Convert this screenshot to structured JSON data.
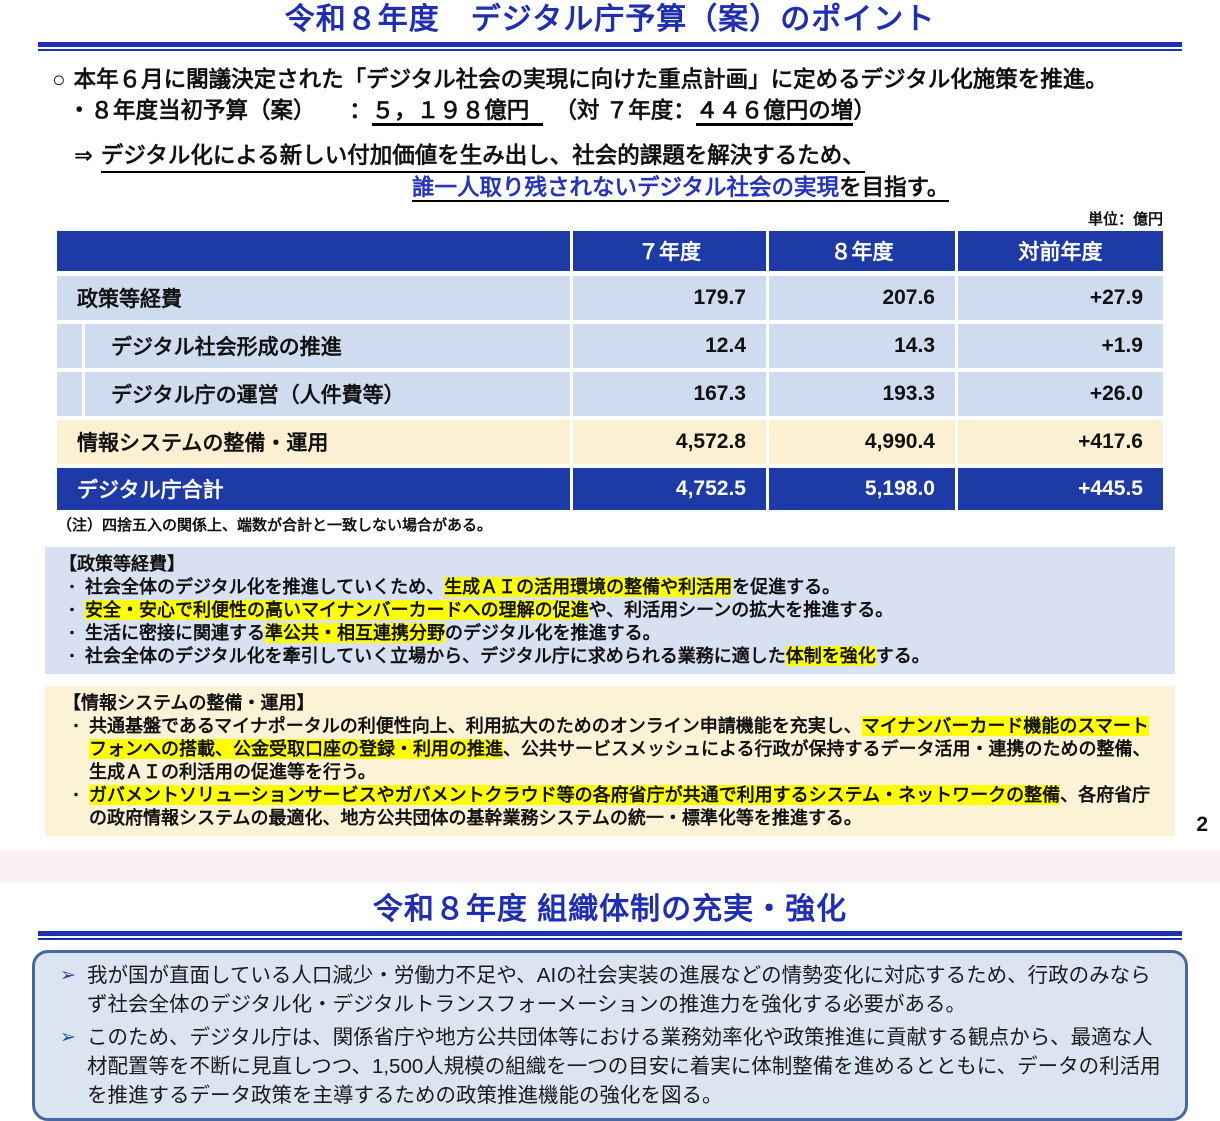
{
  "page": {
    "title": "令和８年度　デジタル庁予算（案）のポイント",
    "page_number": "2"
  },
  "intro": {
    "marker_circle": "○",
    "line1": "本年６月に閣議決定された「デジタル社会の実現に向けた重点計画」に定めるデジタル化施策を推進。",
    "line2_prefix": "・８年度当初予算（案）　　：",
    "line2_amount": "５，１９８億円",
    "line2_mid": "　（対 ７年度：",
    "line2_increase": "４４６億円の増",
    "line2_close": "）",
    "arrow": "⇒",
    "line3": "デジタル化による新しい付加価値を生み出し、社会的課題を解決するため、",
    "line4_blue": "誰一人取り残されないデジタル社会の実現",
    "line4_black": "を目指す。"
  },
  "table": {
    "unit_label": "単位：億円",
    "headers": [
      "",
      "７年度",
      "８年度",
      "対前年度"
    ],
    "rows": [
      {
        "label": "政策等経費",
        "y7": "179.7",
        "y8": "207.6",
        "diff": "+27.9"
      },
      {
        "label": "デジタル社会形成の推進",
        "y7": "12.4",
        "y8": "14.3",
        "diff": "+1.9"
      },
      {
        "label": "デジタル庁の運営（人件費等）",
        "y7": "167.3",
        "y8": "193.3",
        "diff": "+26.0"
      },
      {
        "label": "情報システムの整備・運用",
        "y7": "4,572.8",
        "y8": "4,990.4",
        "diff": "+417.6"
      },
      {
        "label": "デジタル庁合計",
        "y7": "4,752.5",
        "y8": "5,198.0",
        "diff": "+445.5"
      }
    ],
    "note": "（注）四捨五入の関係上、端数が合計と一致しない場合がある。"
  },
  "policy_box": {
    "heading": "【政策等経費】",
    "bullet_marker": "・",
    "bullets": [
      {
        "pre": "社会全体のデジタル化を推進していくため、",
        "hl": "生成ＡＩの活用環境の整備や利活用",
        "post": "を促進する。"
      },
      {
        "pre": "",
        "hl": "安全・安心で利便性の高いマイナンバーカードへの理解の促進",
        "post": "や、利活用シーンの拡大を推進する。"
      },
      {
        "pre": "生活に密接に関連する",
        "hl": "準公共・相互連携分野",
        "post": "のデジタル化を推進する。"
      },
      {
        "pre": "社会全体のデジタル化を牽引していく立場から、デジタル庁に求められる業務に適した",
        "hl": "体制を強化",
        "post": "する。"
      }
    ]
  },
  "system_box": {
    "heading": "【情報システムの整備・運用】",
    "bullet_marker": "・",
    "bullets": [
      {
        "pre": "共通基盤であるマイナポータルの利便性向上、利用拡大のためのオンライン申請機能を充実し、",
        "hl": "マイナンバーカード機能のスマートフォンへの搭載、公金受取口座の登録・利用の推進",
        "post": "、公共サービスメッシュによる行政が保持するデータ活用・連携のための整備、生成ＡＩの利活用の促進等を行う。"
      },
      {
        "pre": "",
        "hl": "ガバメントソリューションサービスやガバメントクラウド等の各府省庁が共通で利用するシステム・ネットワークの整備",
        "post": "、各府省庁の政府情報システムの最適化、地方公共団体の基幹業務システムの統一・標準化等を推進する。"
      }
    ]
  },
  "section2": {
    "title": "令和８年度 組織体制の充実・強化",
    "marker": "➢",
    "bullets": [
      "我が国が直面している人口減少・労働力不足や、AIの社会実装の進展などの情勢変化に対応するため、行政のみならず社会全体のデジタル化・デジタルトランスフォーメーションの推進力を強化する必要がある。",
      "このため、デジタル庁は、関係省庁や地方公共団体等における業務効率化や政策推進に貢献する観点から、最適な人材配置等を不断に見直しつつ、1,500人規模の組織を一つの目安に着実に体制整備を進めるとともに、データの利活用を推進するデータ政策を主導するための政策推進機能の強化を図る。"
    ]
  },
  "colors": {
    "accent_blue": "#1f2fb4",
    "table_header_blue": "#1e3aa6",
    "row_light_blue": "#cfdbee",
    "row_cream": "#fbf1d2",
    "policy_box_bg": "#d8e1f1",
    "system_box_bg": "#fcf2d5",
    "highlight_yellow": "#ffff00",
    "pink_band": "#fcf0f6",
    "org_box_bg": "#dce4f2",
    "org_box_border": "#44689f"
  }
}
